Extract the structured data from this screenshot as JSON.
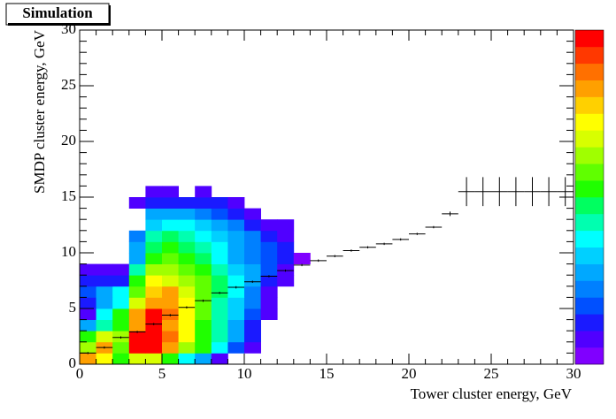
{
  "chart_data": {
    "type": "heatmap",
    "title": "Simulation",
    "x_label": "Tower cluster energy, GeV",
    "y_label": "SMDP cluster energy, GeV",
    "xlim": [
      0,
      30
    ],
    "ylim": [
      0,
      30
    ],
    "xticks": [
      0,
      5,
      10,
      15,
      20,
      25,
      30
    ],
    "yticks": [
      0,
      5,
      10,
      15,
      20,
      25,
      30
    ],
    "xbins": [
      0,
      1,
      2,
      3,
      4,
      5,
      6,
      7,
      8,
      9,
      10,
      11,
      12,
      13,
      14
    ],
    "ybins": [
      0,
      1,
      2,
      3,
      4,
      5,
      6,
      7,
      8,
      9,
      10,
      11,
      12,
      13,
      14,
      15,
      16
    ],
    "zlim": [
      0,
      20
    ],
    "colorscale": [
      "#8000ff",
      "#5000ff",
      "#1a1aff",
      "#0050ff",
      "#0080ff",
      "#00a8ff",
      "#00d0ff",
      "#00ffff",
      "#00ffb0",
      "#00ff60",
      "#20ff00",
      "#60ff00",
      "#a0ff00",
      "#d8ff00",
      "#ffff00",
      "#ffd000",
      "#ffa000",
      "#ff7000",
      "#ff3800",
      "#ff0000"
    ],
    "z": [
      [
        17,
        15,
        11,
        14,
        14,
        11,
        8,
        6,
        2,
        0,
        0,
        0,
        0,
        0
      ],
      [
        13,
        17,
        12,
        20,
        20,
        17,
        13,
        11,
        8,
        4,
        2,
        0,
        0,
        0
      ],
      [
        11,
        14,
        13,
        20,
        20,
        18,
        15,
        11,
        9,
        6,
        3,
        0,
        0,
        0
      ],
      [
        6,
        9,
        11,
        17,
        20,
        17,
        15,
        11,
        9,
        6,
        3,
        0,
        0,
        0
      ],
      [
        2,
        8,
        11,
        17,
        20,
        18,
        15,
        12,
        9,
        7,
        4,
        2,
        0,
        0
      ],
      [
        3,
        6,
        8,
        14,
        17,
        17,
        15,
        12,
        9,
        7,
        5,
        2,
        0,
        0
      ],
      [
        4,
        6,
        8,
        12,
        16,
        17,
        14,
        12,
        10,
        8,
        5,
        2,
        0,
        0
      ],
      [
        3,
        3,
        3,
        11,
        15,
        14,
        13,
        12,
        10,
        8,
        6,
        3,
        2,
        0
      ],
      [
        2,
        2,
        2,
        9,
        13,
        13,
        12,
        11,
        9,
        7,
        6,
        4,
        2,
        0
      ],
      [
        0,
        0,
        0,
        6,
        11,
        12,
        11,
        10,
        8,
        6,
        5,
        4,
        3,
        1
      ],
      [
        0,
        0,
        0,
        6,
        10,
        11,
        10,
        9,
        8,
        6,
        5,
        4,
        3,
        0
      ],
      [
        0,
        0,
        0,
        5,
        9,
        10,
        9,
        8,
        7,
        6,
        5,
        3,
        2,
        0
      ],
      [
        0,
        0,
        0,
        0,
        7,
        8,
        8,
        7,
        6,
        5,
        3,
        2,
        2,
        0
      ],
      [
        0,
        0,
        0,
        0,
        6,
        6,
        6,
        5,
        4,
        3,
        2,
        0,
        0,
        0
      ],
      [
        0,
        0,
        0,
        2,
        3,
        3,
        3,
        3,
        3,
        2,
        0,
        0,
        0,
        0
      ],
      [
        0,
        0,
        0,
        0,
        2,
        2,
        0,
        2,
        0,
        0,
        0,
        0,
        0,
        0
      ]
    ],
    "profile": {
      "x": [
        0.5,
        1.5,
        2.5,
        3.5,
        4.5,
        5.5,
        6.5,
        7.5,
        8.5,
        9.5,
        10.5,
        11.5,
        12.5,
        13.5,
        14.5,
        15.5,
        16.5,
        17.5,
        18.5,
        19.5,
        20.5,
        21.5,
        22.5,
        23.5,
        24.5,
        25.5,
        26.5,
        27.5,
        28.5,
        29.5
      ],
      "xerr": [
        0.5,
        0.5,
        0.5,
        0.5,
        0.5,
        0.5,
        0.5,
        0.5,
        0.5,
        0.5,
        0.5,
        0.5,
        0.5,
        0.5,
        0.5,
        0.5,
        0.5,
        0.5,
        0.5,
        0.5,
        0.5,
        0.5,
        0.5,
        0.5,
        0.5,
        0.5,
        0.5,
        0.5,
        0.5,
        0.5
      ],
      "values": [
        1.0,
        1.5,
        2.4,
        2.9,
        3.6,
        4.4,
        5.1,
        5.7,
        6.4,
        6.9,
        7.4,
        7.9,
        8.4,
        8.9,
        9.3,
        9.7,
        10.2,
        10.5,
        10.8,
        11.2,
        11.7,
        12.3,
        13.5,
        15.5,
        15.5,
        15.5,
        15.5,
        15.5,
        15.5,
        15.5
      ],
      "yerr": [
        0.1,
        0.1,
        0.1,
        0.1,
        0.1,
        0.1,
        0.1,
        0.1,
        0.1,
        0.1,
        0.1,
        0.1,
        0.1,
        0.1,
        0.1,
        0.1,
        0.1,
        0.1,
        0.1,
        0.1,
        0.1,
        0.1,
        0.2,
        1.3,
        1.3,
        1.3,
        1.3,
        1.3,
        1.3,
        1.3
      ],
      "color": "#000000"
    }
  }
}
